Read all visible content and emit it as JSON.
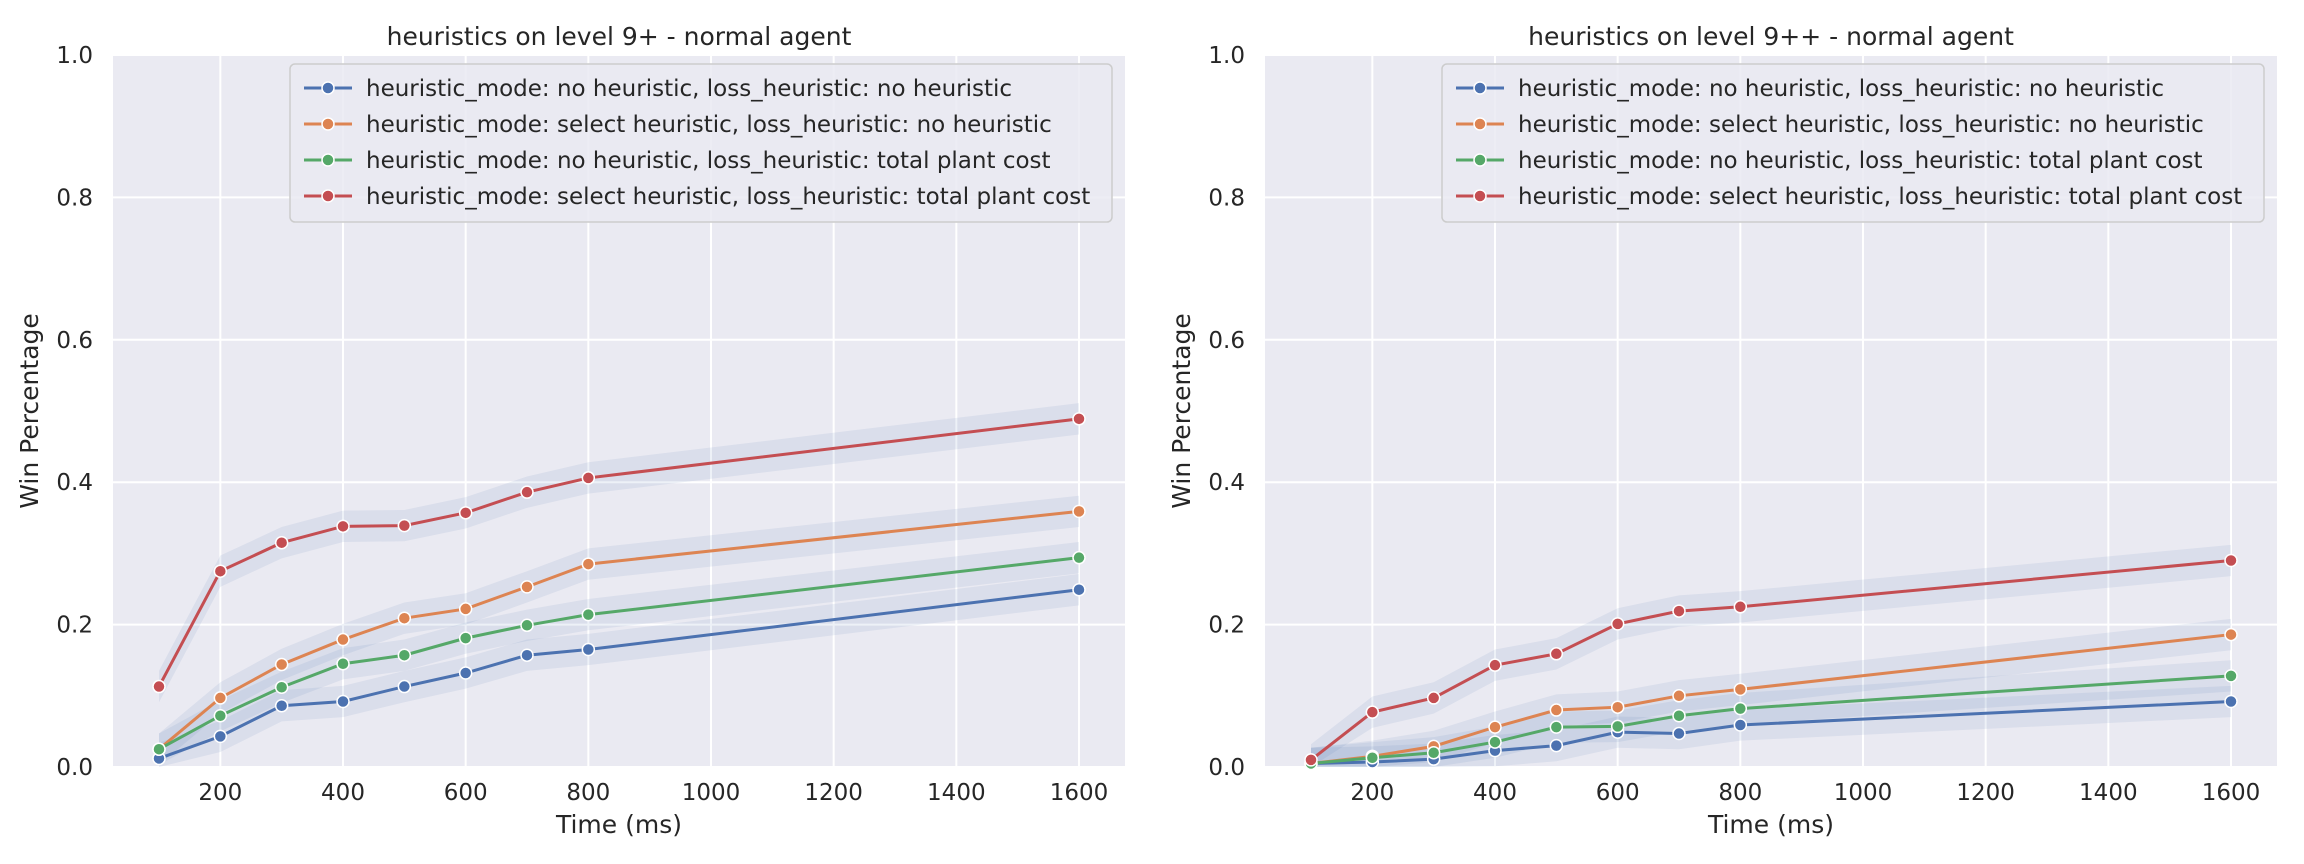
{
  "chart_data": [
    {
      "type": "line",
      "title": "heuristics on level 9+ - normal agent",
      "xlabel": "Time (ms)",
      "ylabel": "Win Percentage",
      "xlim": [
        25,
        1675
      ],
      "ylim": [
        0,
        1
      ],
      "xticks": [
        "200",
        "400",
        "600",
        "800",
        "1000",
        "1200",
        "1400",
        "1600"
      ],
      "yticks": [
        "0.0",
        "0.2",
        "0.4",
        "0.6",
        "0.8",
        "1.0"
      ],
      "grid": true,
      "legend": "top-right",
      "x": [
        100,
        200,
        300,
        400,
        500,
        600,
        700,
        800,
        1600
      ],
      "series": [
        {
          "name": "heuristic_mode: no heuristic, loss_heuristic: no heuristic",
          "color": "#4c72b0",
          "values": [
            0.012,
            0.043,
            0.086,
            0.092,
            0.113,
            0.132,
            0.157,
            0.165,
            0.249
          ]
        },
        {
          "name": "heuristic_mode: select heuristic, loss_heuristic: no heuristic",
          "color": "#dd8452",
          "values": [
            0.025,
            0.097,
            0.144,
            0.179,
            0.209,
            0.222,
            0.253,
            0.285,
            0.359
          ]
        },
        {
          "name": "heuristic_mode: no heuristic, loss_heuristic: total plant cost",
          "color": "#55a868",
          "values": [
            0.025,
            0.072,
            0.112,
            0.145,
            0.157,
            0.181,
            0.199,
            0.214,
            0.294
          ]
        },
        {
          "name": "heuristic_mode: select heuristic, loss_heuristic: total plant cost",
          "color": "#c44e52",
          "values": [
            0.113,
            0.275,
            0.315,
            0.338,
            0.339,
            0.357,
            0.386,
            0.406,
            0.489
          ]
        }
      ]
    },
    {
      "type": "line",
      "title": "heuristics on level 9++ - normal agent",
      "xlabel": "Time (ms)",
      "ylabel": "Win Percentage",
      "xlim": [
        25,
        1675
      ],
      "ylim": [
        0,
        1
      ],
      "xticks": [
        "200",
        "400",
        "600",
        "800",
        "1000",
        "1200",
        "1400",
        "1600"
      ],
      "yticks": [
        "0.0",
        "0.2",
        "0.4",
        "0.6",
        "0.8",
        "1.0"
      ],
      "grid": true,
      "legend": "top-right",
      "x": [
        100,
        200,
        300,
        400,
        500,
        600,
        700,
        800,
        1600
      ],
      "series": [
        {
          "name": "heuristic_mode: no heuristic, loss_heuristic: no heuristic",
          "color": "#4c72b0",
          "values": [
            0.005,
            0.007,
            0.011,
            0.023,
            0.03,
            0.049,
            0.047,
            0.059,
            0.092
          ]
        },
        {
          "name": "heuristic_mode: select heuristic, loss_heuristic: no heuristic",
          "color": "#dd8452",
          "values": [
            0.005,
            0.015,
            0.029,
            0.056,
            0.08,
            0.084,
            0.1,
            0.109,
            0.186
          ]
        },
        {
          "name": "heuristic_mode: no heuristic, loss_heuristic: total plant cost",
          "color": "#55a868",
          "values": [
            0.005,
            0.013,
            0.02,
            0.035,
            0.056,
            0.057,
            0.072,
            0.082,
            0.128
          ]
        },
        {
          "name": "heuristic_mode: select heuristic, loss_heuristic: total plant cost",
          "color": "#c44e52",
          "values": [
            0.01,
            0.077,
            0.097,
            0.143,
            0.159,
            0.201,
            0.219,
            0.225,
            0.29
          ]
        }
      ]
    }
  ]
}
